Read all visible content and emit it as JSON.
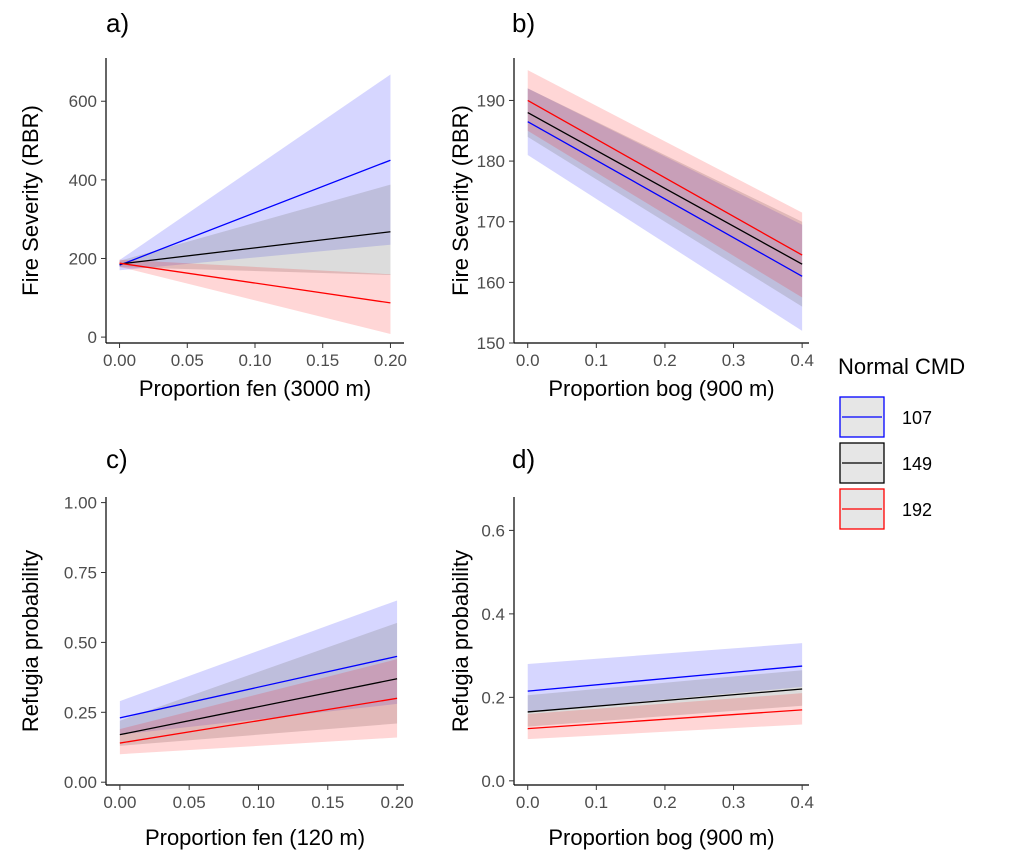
{
  "colors": {
    "107": "#0000ff",
    "149": "#000000",
    "192": "#ff0000",
    "band107": "#0000ff",
    "band149": "#808080",
    "band192": "#ff0000"
  },
  "legend": {
    "title": "Normal CMD",
    "items": [
      {
        "label": "107",
        "color_key": "107"
      },
      {
        "label": "149",
        "color_key": "149"
      },
      {
        "label": "192",
        "color_key": "192"
      }
    ]
  },
  "chart_data": [
    {
      "tag": "a)",
      "type": "line",
      "xlabel": "Proportion fen (3000 m)",
      "ylabel": "Fire Severity (RBR)",
      "xlim": [
        -0.01,
        0.21
      ],
      "ylim": [
        -15,
        710
      ],
      "xticks": [
        0.0,
        0.05,
        0.1,
        0.15,
        0.2
      ],
      "xtick_labels": [
        "0.00",
        "0.05",
        "0.10",
        "0.15",
        "0.20"
      ],
      "yticks": [
        0,
        200,
        400,
        600
      ],
      "ytick_labels": [
        "0",
        "200",
        "400",
        "600"
      ],
      "series": [
        {
          "name": "107",
          "x": [
            0.0,
            0.2
          ],
          "y": [
            183,
            450
          ],
          "lower": [
            170,
            235
          ],
          "upper": [
            196,
            668
          ]
        },
        {
          "name": "149",
          "x": [
            0.0,
            0.2
          ],
          "y": [
            186,
            268
          ],
          "lower": [
            178,
            158
          ],
          "upper": [
            194,
            388
          ]
        },
        {
          "name": "192",
          "x": [
            0.0,
            0.2
          ],
          "y": [
            188,
            87
          ],
          "lower": [
            179,
            8
          ],
          "upper": [
            197,
            160
          ]
        }
      ]
    },
    {
      "tag": "b)",
      "type": "line",
      "xlabel": "Proportion bog (900 m)",
      "ylabel": "Fire Severity (RBR)",
      "xlim": [
        -0.02,
        0.41
      ],
      "ylim": [
        150,
        197
      ],
      "xticks": [
        0.0,
        0.1,
        0.2,
        0.3,
        0.4
      ],
      "xtick_labels": [
        "0.0",
        "0.1",
        "0.2",
        "0.3",
        "0.4"
      ],
      "yticks": [
        150,
        160,
        170,
        180,
        190
      ],
      "ytick_labels": [
        "150",
        "160",
        "170",
        "180",
        "190"
      ],
      "series": [
        {
          "name": "107",
          "x": [
            0.0,
            0.4
          ],
          "y": [
            186.5,
            161
          ],
          "lower": [
            181,
            152
          ],
          "upper": [
            192,
            169.5
          ]
        },
        {
          "name": "149",
          "x": [
            0.0,
            0.4
          ],
          "y": [
            188,
            163
          ],
          "lower": [
            184,
            156
          ],
          "upper": [
            192,
            170
          ]
        },
        {
          "name": "192",
          "x": [
            0.0,
            0.4
          ],
          "y": [
            190,
            164.5
          ],
          "lower": [
            185,
            157.5
          ],
          "upper": [
            195,
            171.5
          ]
        }
      ]
    },
    {
      "tag": "c)",
      "type": "line",
      "xlabel": "Proportion fen (120 m)",
      "ylabel": "Refugia probability",
      "xlim": [
        -0.01,
        0.205
      ],
      "ylim": [
        -0.01,
        1.02
      ],
      "xticks": [
        0.0,
        0.05,
        0.1,
        0.15,
        0.2
      ],
      "xtick_labels": [
        "0.00",
        "0.05",
        "0.10",
        "0.15",
        "0.20"
      ],
      "yticks": [
        0.0,
        0.25,
        0.5,
        0.75,
        1.0
      ],
      "ytick_labels": [
        "0.00",
        "0.25",
        "0.50",
        "0.75",
        "1.00"
      ],
      "series": [
        {
          "name": "107",
          "x": [
            0.0,
            0.2
          ],
          "y": [
            0.23,
            0.45
          ],
          "lower": [
            0.17,
            0.28
          ],
          "upper": [
            0.29,
            0.65
          ]
        },
        {
          "name": "149",
          "x": [
            0.0,
            0.2
          ],
          "y": [
            0.17,
            0.37
          ],
          "lower": [
            0.13,
            0.21
          ],
          "upper": [
            0.22,
            0.57
          ]
        },
        {
          "name": "192",
          "x": [
            0.0,
            0.2
          ],
          "y": [
            0.14,
            0.3
          ],
          "lower": [
            0.1,
            0.16
          ],
          "upper": [
            0.19,
            0.44
          ]
        }
      ]
    },
    {
      "tag": "d)",
      "type": "line",
      "xlabel": "Proportion bog (900 m)",
      "ylabel": "Refugia probability",
      "xlim": [
        -0.02,
        0.41
      ],
      "ylim": [
        -0.01,
        0.68
      ],
      "xticks": [
        0.0,
        0.1,
        0.2,
        0.3,
        0.4
      ],
      "xtick_labels": [
        "0.0",
        "0.1",
        "0.2",
        "0.3",
        "0.4"
      ],
      "yticks": [
        0.0,
        0.2,
        0.4,
        0.6
      ],
      "ytick_labels": [
        "0.0",
        "0.2",
        "0.4",
        "0.6"
      ],
      "series": [
        {
          "name": "107",
          "x": [
            0.0,
            0.4
          ],
          "y": [
            0.215,
            0.275
          ],
          "lower": [
            0.165,
            0.225
          ],
          "upper": [
            0.28,
            0.33
          ]
        },
        {
          "name": "149",
          "x": [
            0.0,
            0.4
          ],
          "y": [
            0.165,
            0.22
          ],
          "lower": [
            0.13,
            0.18
          ],
          "upper": [
            0.205,
            0.265
          ]
        },
        {
          "name": "192",
          "x": [
            0.0,
            0.4
          ],
          "y": [
            0.125,
            0.17
          ],
          "lower": [
            0.1,
            0.135
          ],
          "upper": [
            0.16,
            0.21
          ]
        }
      ]
    }
  ]
}
